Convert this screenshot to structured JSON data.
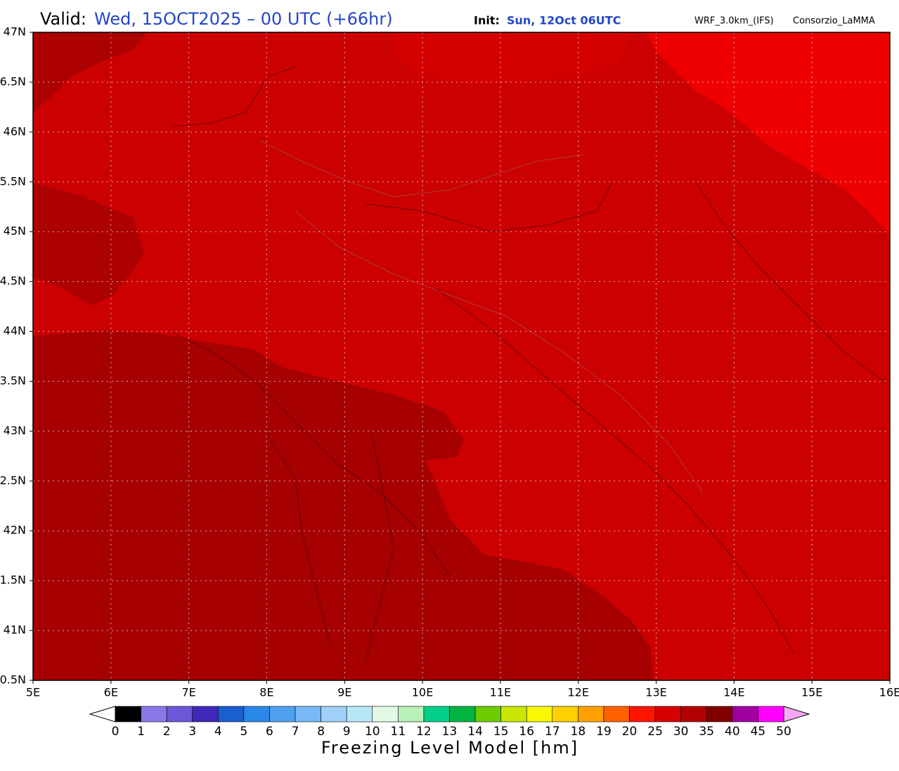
{
  "header": {
    "valid_label": "Valid:",
    "valid_value": "Wed, 15OCT2025 – 00 UTC (+66hr)",
    "init_label": "Init:",
    "init_value": "Sun, 12Oct 06UTC",
    "model": "WRF_3.0km_(IFS)",
    "source": "Consorzio_LaMMA"
  },
  "map": {
    "lat_ticks": [
      "47N",
      "6.5N",
      "46N",
      "5.5N",
      "45N",
      "4.5N",
      "44N",
      "3.5N",
      "43N",
      "2.5N",
      "42N",
      "1.5N",
      "41N",
      "0.5N"
    ],
    "lon_ticks": [
      "5E",
      "6E",
      "7E",
      "8E",
      "9E",
      "10E",
      "11E",
      "12E",
      "13E",
      "14E",
      "15E",
      "16E"
    ]
  },
  "colorbar": {
    "title": "Freezing Level Model [hm]",
    "labels": [
      0,
      1,
      2,
      3,
      4,
      5,
      6,
      7,
      8,
      9,
      10,
      11,
      12,
      13,
      14,
      15,
      16,
      17,
      18,
      19,
      20,
      25,
      30,
      35,
      40,
      45,
      50
    ],
    "under_color": "#ffffff",
    "over_color": "#f4a8f4",
    "colors": [
      "#000000",
      "#8878e8",
      "#6a58d8",
      "#4028b8",
      "#1a5fd0",
      "#2a88e8",
      "#50a0f0",
      "#78b8f8",
      "#a0d0f8",
      "#b8e8f8",
      "#e4f8e8",
      "#b8f0b8",
      "#00d08a",
      "#00b440",
      "#6ccc00",
      "#c8e600",
      "#f8f800",
      "#ffd000",
      "#ffa000",
      "#ff6000",
      "#ff1400",
      "#d80000",
      "#b40000",
      "#800000",
      "#a000a0",
      "#ff00ff"
    ]
  }
}
